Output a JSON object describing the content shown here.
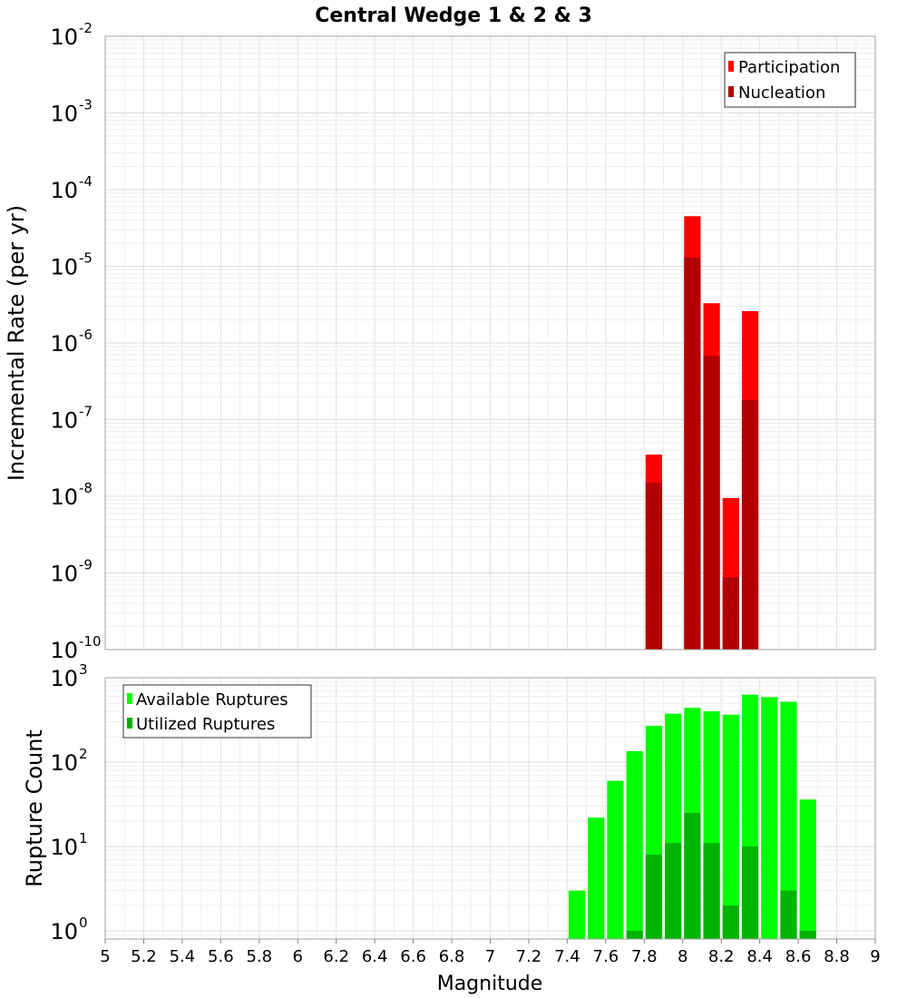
{
  "chart_data": [
    {
      "id": "top",
      "type": "bar",
      "title": "Central Wedge 1 & 2 & 3",
      "xlabel": "",
      "ylabel": "Incremental Rate (per yr)",
      "yscale": "log",
      "xlim": [
        5,
        9
      ],
      "ylim": [
        1e-10,
        0.01
      ],
      "grid": true,
      "legend_position": "top-right",
      "y_ticks": [
        {
          "base": "10",
          "exp": "-10"
        },
        {
          "base": "10",
          "exp": "-9"
        },
        {
          "base": "10",
          "exp": "-8"
        },
        {
          "base": "10",
          "exp": "-7"
        },
        {
          "base": "10",
          "exp": "-6"
        },
        {
          "base": "10",
          "exp": "-5"
        },
        {
          "base": "10",
          "exp": "-4"
        },
        {
          "base": "10",
          "exp": "-3"
        },
        {
          "base": "10",
          "exp": "-2"
        }
      ],
      "bin_width": 0.1,
      "series": [
        {
          "name": "Participation",
          "color": "#ff0000",
          "x": [
            7.85,
            8.05,
            8.15,
            8.25,
            8.35
          ],
          "values": [
            3.5e-08,
            4.5e-05,
            3.3e-06,
            9.5e-09,
            2.6e-06
          ]
        },
        {
          "name": "Nucleation",
          "color": "#b30000",
          "x": [
            7.85,
            8.05,
            8.15,
            8.25,
            8.35
          ],
          "values": [
            1.5e-08,
            1.3e-05,
            6.8e-07,
            8.8e-10,
            1.8e-07
          ]
        }
      ]
    },
    {
      "id": "bottom",
      "type": "bar",
      "title": "",
      "xlabel": "Magnitude",
      "ylabel": "Rupture Count",
      "yscale": "log",
      "xlim": [
        5,
        9
      ],
      "ylim": [
        0.8,
        1000
      ],
      "grid": true,
      "legend_position": "top-left",
      "x_ticks": [
        "5",
        "5.2",
        "5.4",
        "5.6",
        "5.8",
        "6",
        "6.2",
        "6.4",
        "6.6",
        "6.8",
        "7",
        "7.2",
        "7.4",
        "7.6",
        "7.8",
        "8",
        "8.2",
        "8.4",
        "8.6",
        "8.8",
        "9"
      ],
      "y_ticks": [
        {
          "base": "10",
          "exp": "0"
        },
        {
          "base": "10",
          "exp": "1"
        },
        {
          "base": "10",
          "exp": "2"
        },
        {
          "base": "10",
          "exp": "3"
        }
      ],
      "bin_width": 0.1,
      "series": [
        {
          "name": "Available Ruptures",
          "color": "#00ff00",
          "x": [
            7.45,
            7.55,
            7.65,
            7.75,
            7.85,
            7.95,
            8.05,
            8.15,
            8.25,
            8.35,
            8.45,
            8.55,
            8.65
          ],
          "values": [
            3,
            22,
            60,
            135,
            270,
            375,
            440,
            400,
            365,
            630,
            590,
            520,
            36
          ]
        },
        {
          "name": "Utilized Ruptures",
          "color": "#00b300",
          "x": [
            7.75,
            7.85,
            7.95,
            8.05,
            8.15,
            8.25,
            8.35,
            8.55,
            8.65
          ],
          "values": [
            1,
            8,
            11,
            25,
            11,
            2,
            10,
            3,
            1
          ]
        }
      ]
    }
  ]
}
